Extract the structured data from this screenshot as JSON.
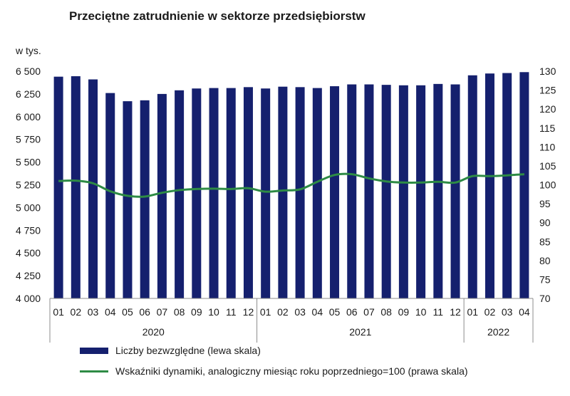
{
  "chart_data": {
    "type": "bar+line",
    "title": "Przeciętne zatrudnienie w sektorze przedsiębiorstw",
    "unit_label": "w tys.",
    "categories": [
      "01",
      "02",
      "03",
      "04",
      "05",
      "06",
      "07",
      "08",
      "09",
      "10",
      "11",
      "12",
      "01",
      "02",
      "03",
      "04",
      "05",
      "06",
      "07",
      "08",
      "09",
      "10",
      "11",
      "12",
      "01",
      "02",
      "03",
      "04"
    ],
    "year_groups": [
      {
        "label": "2020",
        "count": 12
      },
      {
        "label": "2021",
        "count": 12
      },
      {
        "label": "2022",
        "count": 4
      }
    ],
    "series": [
      {
        "name": "Liczby bezwzględne (lewa skala)",
        "type": "bar",
        "axis": "left",
        "color": "#15206e",
        "values": [
          6440,
          6445,
          6410,
          6260,
          6170,
          6180,
          6250,
          6290,
          6310,
          6315,
          6315,
          6325,
          6310,
          6330,
          6325,
          6315,
          6335,
          6355,
          6355,
          6350,
          6345,
          6345,
          6360,
          6355,
          6455,
          6475,
          6480,
          6490
        ]
      },
      {
        "name": "Wskaźniki dynamiki, analogiczny miesiąc roku poprzedniego=100 (prawa skala)",
        "type": "line",
        "axis": "right",
        "color": "#2e8b45",
        "values": [
          101.0,
          101.1,
          100.4,
          98.3,
          97.1,
          96.9,
          97.9,
          98.6,
          98.9,
          99.0,
          98.9,
          99.1,
          98.2,
          98.5,
          98.8,
          100.8,
          102.6,
          102.8,
          101.7,
          100.9,
          100.6,
          100.6,
          100.8,
          100.6,
          102.3,
          102.3,
          102.5,
          102.8
        ]
      }
    ],
    "y_left": {
      "min": 4000,
      "max": 6500,
      "ticks": [
        "4 000",
        "4 250",
        "4 500",
        "4 750",
        "5 000",
        "5 250",
        "5 500",
        "5 750",
        "6 000",
        "6 250",
        "6 500"
      ]
    },
    "y_right": {
      "min": 70,
      "max": 130,
      "ticks": [
        "70",
        "75",
        "80",
        "85",
        "90",
        "95",
        "100",
        "105",
        "110",
        "115",
        "120",
        "125",
        "130"
      ]
    },
    "grid": false,
    "legend_position": "bottom"
  }
}
